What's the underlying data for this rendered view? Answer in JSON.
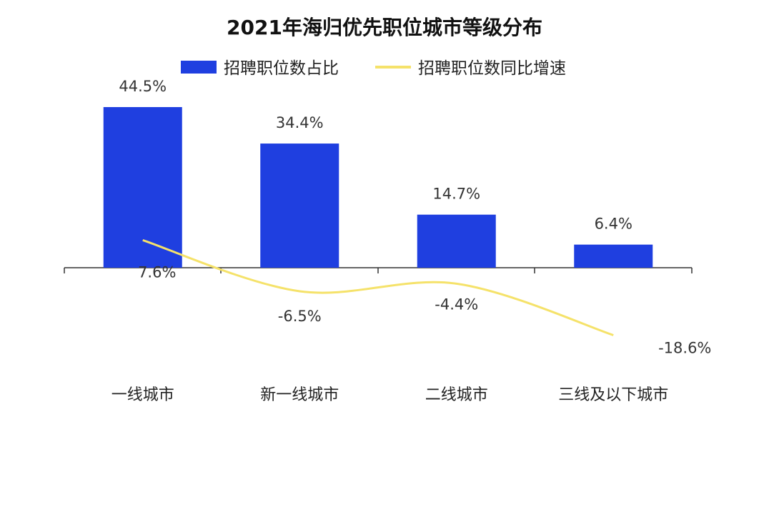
{
  "chart_data": {
    "type": "bar",
    "title": "2021年海归优先职位城市等级分布",
    "categories": [
      "一线城市",
      "新一线城市",
      "二线城市",
      "三线及以下城市"
    ],
    "series": [
      {
        "name": "招聘职位数占比",
        "type": "bar",
        "color": "#1f3fe0",
        "values": [
          44.5,
          34.4,
          14.7,
          6.4
        ],
        "labels": [
          "44.5%",
          "34.4%",
          "14.7%",
          "6.4%"
        ]
      },
      {
        "name": "招聘职位数同比增速",
        "type": "line",
        "color": "#f5e26a",
        "values": [
          7.6,
          -6.5,
          -4.4,
          -18.6
        ],
        "labels": [
          "7.6%",
          "-6.5%",
          "-4.4%",
          "-18.6%"
        ]
      }
    ],
    "legend_position": "top-center",
    "grid": false
  }
}
